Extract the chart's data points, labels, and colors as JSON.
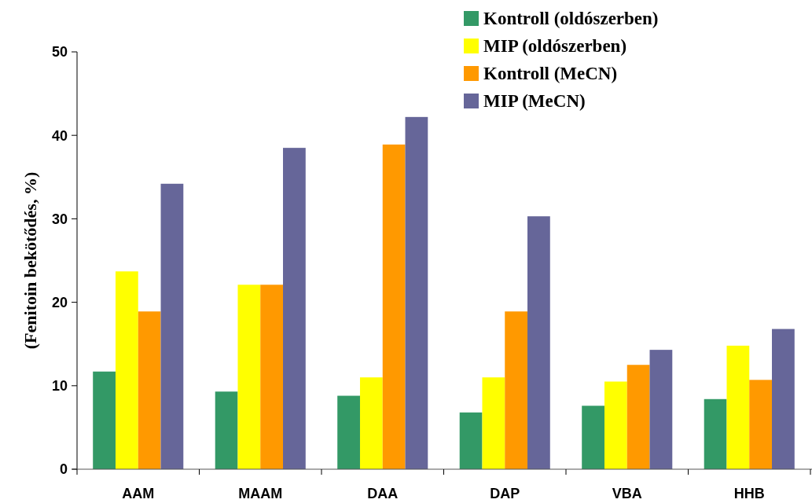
{
  "chart_data": {
    "type": "bar",
    "ylabel": "(Fenitoin bekötődés, %)",
    "categories": [
      "AAM",
      "MAAM",
      "DAA",
      "DAP",
      "VBA",
      "HHB"
    ],
    "series": [
      {
        "name": "Kontroll (oldószerben)",
        "color": "#339966",
        "values": [
          11.7,
          9.3,
          8.8,
          6.8,
          7.6,
          8.4
        ]
      },
      {
        "name": "MIP (oldószerben)",
        "color": "#ffff00",
        "values": [
          23.7,
          22.1,
          11.0,
          11.0,
          10.5,
          14.8
        ]
      },
      {
        "name": "Kontroll (MeCN)",
        "color": "#ff9900",
        "values": [
          18.9,
          22.1,
          38.9,
          18.9,
          12.5,
          10.7
        ]
      },
      {
        "name": "MIP (MeCN)",
        "color": "#666699",
        "values": [
          34.2,
          38.5,
          42.2,
          30.3,
          14.3,
          16.8
        ]
      }
    ],
    "ylim": [
      0,
      50
    ],
    "yticks": [
      0,
      10,
      20,
      30,
      40,
      50
    ],
    "grid": false,
    "legend": "top right"
  }
}
